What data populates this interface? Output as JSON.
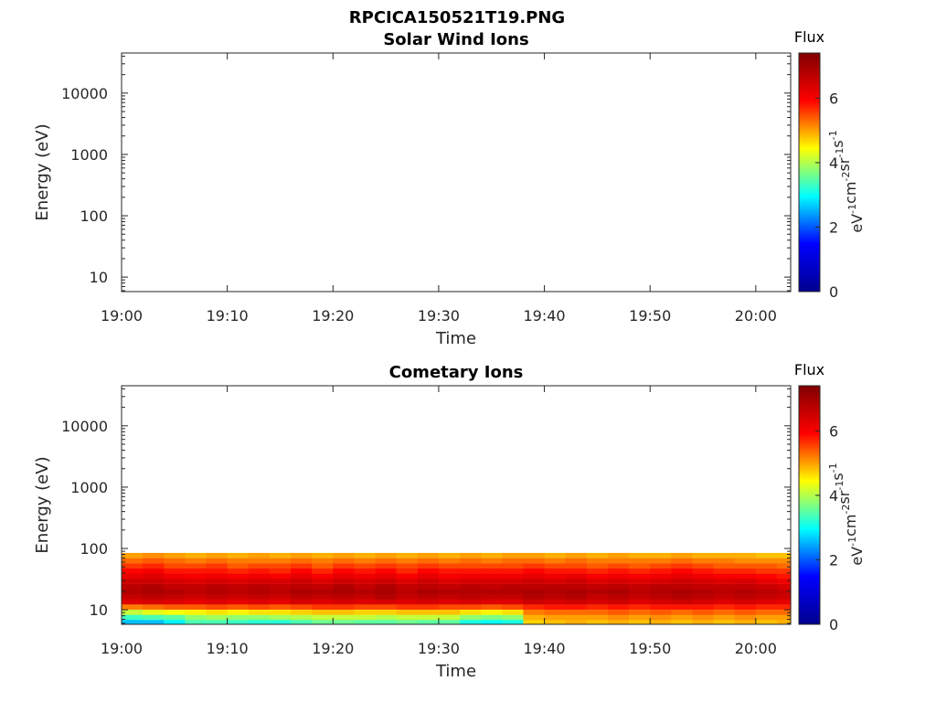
{
  "figure_title": "RPCICA150521T19.PNG",
  "colormap": [
    "#00008f",
    "#0000ff",
    "#00ffff",
    "#ffff00",
    "#ff0000",
    "#800000"
  ],
  "chart_data": [
    {
      "type": "heatmap",
      "title": "Solar Wind Ions",
      "xlabel": "Time",
      "ylabel": "Energy (eV)",
      "yscale": "log",
      "x_ticks": [
        "19:00",
        "19:10",
        "19:20",
        "19:30",
        "19:40",
        "19:50",
        "20:00"
      ],
      "x_tick_minutes": [
        0,
        10,
        20,
        30,
        40,
        50,
        60
      ],
      "xlim_minutes": [
        0,
        63.3
      ],
      "y_ticks": [
        "10",
        "100",
        "1000",
        "10000"
      ],
      "y_tick_values": [
        10,
        100,
        1000,
        10000
      ],
      "ylim": [
        5.8,
        45000
      ],
      "colorbar": {
        "label": "Flux",
        "unit": "eV-1cm-2sr-1s-1",
        "ticks": [
          "0",
          "2",
          "4",
          "6"
        ],
        "tick_values": [
          0,
          2,
          4,
          6
        ],
        "range": [
          0,
          7.4
        ]
      },
      "data_columns": []
    },
    {
      "type": "heatmap",
      "title": "Cometary Ions",
      "xlabel": "Time",
      "ylabel": "Energy (eV)",
      "yscale": "log",
      "x_ticks": [
        "19:00",
        "19:10",
        "19:20",
        "19:30",
        "19:40",
        "19:50",
        "20:00"
      ],
      "x_tick_minutes": [
        0,
        10,
        20,
        30,
        40,
        50,
        60
      ],
      "xlim_minutes": [
        0,
        63.3
      ],
      "y_ticks": [
        "10",
        "100",
        "1000",
        "10000"
      ],
      "y_tick_values": [
        10,
        100,
        1000,
        10000
      ],
      "ylim": [
        5.8,
        45000
      ],
      "colorbar": {
        "label": "Flux",
        "unit": "eV-1cm-2sr-1s-1",
        "ticks": [
          "0",
          "2",
          "4",
          "6"
        ],
        "tick_values": [
          0,
          2,
          4,
          6
        ],
        "range": [
          0,
          7.4
        ]
      },
      "energy_bins": [
        6.3,
        7.6,
        9.2,
        11.2,
        13.6,
        16.5,
        20,
        24.2,
        29.4,
        35.6,
        43.2,
        52.4,
        63.5,
        77
      ],
      "data_columns": [
        {
          "t": 0,
          "flux": [
            2.6,
            3.3,
            4.1,
            5.2,
            6.3,
            6.6,
            6.8,
            6.7,
            6.5,
            6.2,
            5.9,
            5.6,
            5.3,
            5.0
          ]
        },
        {
          "t": 2,
          "flux": [
            2.6,
            3.4,
            4.3,
            5.3,
            6.4,
            6.7,
            6.9,
            6.8,
            6.5,
            6.3,
            6.0,
            5.7,
            5.4,
            5.1
          ]
        },
        {
          "t": 4,
          "flux": [
            2.9,
            3.5,
            4.4,
            5.4,
            6.3,
            6.6,
            6.8,
            6.6,
            6.4,
            6.1,
            5.8,
            5.5,
            5.3,
            5.0
          ]
        },
        {
          "t": 6,
          "flux": [
            3.4,
            3.8,
            4.5,
            5.4,
            6.2,
            6.5,
            6.7,
            6.6,
            6.3,
            6.0,
            5.8,
            5.5,
            5.2,
            4.9
          ]
        },
        {
          "t": 8,
          "flux": [
            3.4,
            3.9,
            4.6,
            5.5,
            6.3,
            6.6,
            6.8,
            6.7,
            6.4,
            6.1,
            5.8,
            5.6,
            5.3,
            5.0
          ]
        },
        {
          "t": 10,
          "flux": [
            3.3,
            3.8,
            4.5,
            5.4,
            6.2,
            6.5,
            6.7,
            6.6,
            6.3,
            6.0,
            5.7,
            5.4,
            5.2,
            4.9
          ]
        },
        {
          "t": 12,
          "flux": [
            3.2,
            3.8,
            4.6,
            5.5,
            6.3,
            6.6,
            6.8,
            6.7,
            6.4,
            6.1,
            5.8,
            5.5,
            5.2,
            5.0
          ]
        },
        {
          "t": 14,
          "flux": [
            3.2,
            3.9,
            4.6,
            5.4,
            6.2,
            6.5,
            6.7,
            6.6,
            6.4,
            6.0,
            5.7,
            5.5,
            5.2,
            4.9
          ]
        },
        {
          "t": 16,
          "flux": [
            3.4,
            4.0,
            4.7,
            5.5,
            6.4,
            6.7,
            6.9,
            6.7,
            6.5,
            6.2,
            5.9,
            5.6,
            5.3,
            5.0
          ]
        },
        {
          "t": 18,
          "flux": [
            3.6,
            4.1,
            4.8,
            5.6,
            6.3,
            6.6,
            6.8,
            6.6,
            6.3,
            6.0,
            5.7,
            5.4,
            5.2,
            4.9
          ]
        },
        {
          "t": 20,
          "flux": [
            3.6,
            4.1,
            4.8,
            5.6,
            6.4,
            6.7,
            6.9,
            6.8,
            6.5,
            6.2,
            5.9,
            5.6,
            5.3,
            5.0
          ]
        },
        {
          "t": 22,
          "flux": [
            3.5,
            4.1,
            4.7,
            5.5,
            6.3,
            6.6,
            6.8,
            6.6,
            6.4,
            6.1,
            5.8,
            5.5,
            5.2,
            4.9
          ]
        },
        {
          "t": 24,
          "flux": [
            3.5,
            4.0,
            4.7,
            5.5,
            6.4,
            6.8,
            6.9,
            6.8,
            6.5,
            6.2,
            5.9,
            5.6,
            5.3,
            5.0
          ]
        },
        {
          "t": 26,
          "flux": [
            3.6,
            4.1,
            4.8,
            5.6,
            6.3,
            6.6,
            6.7,
            6.6,
            6.3,
            6.0,
            5.7,
            5.5,
            5.2,
            4.9
          ]
        },
        {
          "t": 28,
          "flux": [
            3.5,
            4.1,
            4.8,
            5.6,
            6.4,
            6.7,
            6.9,
            6.7,
            6.5,
            6.2,
            5.9,
            5.6,
            5.3,
            5.0
          ]
        },
        {
          "t": 30,
          "flux": [
            3.5,
            4.1,
            4.8,
            5.5,
            6.3,
            6.6,
            6.8,
            6.6,
            6.3,
            6.0,
            5.8,
            5.5,
            5.2,
            4.9
          ]
        },
        {
          "t": 32,
          "flux": [
            3.1,
            3.8,
            4.6,
            5.5,
            6.4,
            6.7,
            6.8,
            6.7,
            6.4,
            6.1,
            5.8,
            5.5,
            5.3,
            5.0
          ]
        },
        {
          "t": 34,
          "flux": [
            3.0,
            3.7,
            4.5,
            5.4,
            6.3,
            6.6,
            6.8,
            6.6,
            6.4,
            6.1,
            5.8,
            5.5,
            5.2,
            4.9
          ]
        },
        {
          "t": 36,
          "flux": [
            3.1,
            3.8,
            4.6,
            5.5,
            6.3,
            6.6,
            6.8,
            6.7,
            6.4,
            6.1,
            5.8,
            5.5,
            5.3,
            5.0
          ]
        },
        {
          "t": 38,
          "flux": [
            4.7,
            4.9,
            5.2,
            5.7,
            6.5,
            6.8,
            6.9,
            6.7,
            6.5,
            6.2,
            5.9,
            5.6,
            5.3,
            5.0
          ]
        },
        {
          "t": 40,
          "flux": [
            4.8,
            5.0,
            5.3,
            5.8,
            6.4,
            6.7,
            6.8,
            6.7,
            6.4,
            6.1,
            5.8,
            5.5,
            5.2,
            4.9
          ]
        },
        {
          "t": 42,
          "flux": [
            4.9,
            5.0,
            5.3,
            5.8,
            6.5,
            6.8,
            6.9,
            6.7,
            6.5,
            6.2,
            5.8,
            5.5,
            5.3,
            5.0
          ]
        },
        {
          "t": 44,
          "flux": [
            4.8,
            5.0,
            5.3,
            5.7,
            6.4,
            6.6,
            6.8,
            6.6,
            6.3,
            6.0,
            5.7,
            5.4,
            5.2,
            4.9
          ]
        },
        {
          "t": 46,
          "flux": [
            4.9,
            5.1,
            5.4,
            5.8,
            6.5,
            6.7,
            6.9,
            6.7,
            6.4,
            6.1,
            5.8,
            5.5,
            5.2,
            5.0
          ]
        },
        {
          "t": 48,
          "flux": [
            4.8,
            5.0,
            5.3,
            5.7,
            6.3,
            6.6,
            6.7,
            6.6,
            6.3,
            6.0,
            5.7,
            5.4,
            5.2,
            4.9
          ]
        },
        {
          "t": 50,
          "flux": [
            4.9,
            5.1,
            5.4,
            5.8,
            6.4,
            6.7,
            6.8,
            6.7,
            6.4,
            6.1,
            5.8,
            5.5,
            5.2,
            4.9
          ]
        },
        {
          "t": 52,
          "flux": [
            4.8,
            5.0,
            5.3,
            5.8,
            6.5,
            6.8,
            6.9,
            6.7,
            6.5,
            6.2,
            5.9,
            5.6,
            5.3,
            5.0
          ]
        },
        {
          "t": 54,
          "flux": [
            4.9,
            5.1,
            5.4,
            5.8,
            6.4,
            6.7,
            6.8,
            6.6,
            6.4,
            6.1,
            5.8,
            5.5,
            5.2,
            4.9
          ]
        },
        {
          "t": 56,
          "flux": [
            4.8,
            5.0,
            5.3,
            5.7,
            6.3,
            6.6,
            6.7,
            6.6,
            6.3,
            6.0,
            5.7,
            5.4,
            5.2,
            4.9
          ]
        },
        {
          "t": 58,
          "flux": [
            4.9,
            5.1,
            5.4,
            5.8,
            6.4,
            6.7,
            6.8,
            6.6,
            6.4,
            6.0,
            5.7,
            5.4,
            5.1,
            4.9
          ]
        },
        {
          "t": 60,
          "flux": [
            4.8,
            5.0,
            5.3,
            5.7,
            6.3,
            6.6,
            6.7,
            6.5,
            6.2,
            5.9,
            5.6,
            5.4,
            5.1,
            4.8
          ]
        },
        {
          "t": 62,
          "flux": [
            4.9,
            5.0,
            5.3,
            5.7,
            6.2,
            6.5,
            6.6,
            6.4,
            6.1,
            5.8,
            5.6,
            5.3,
            5.1,
            4.8
          ]
        }
      ]
    }
  ]
}
